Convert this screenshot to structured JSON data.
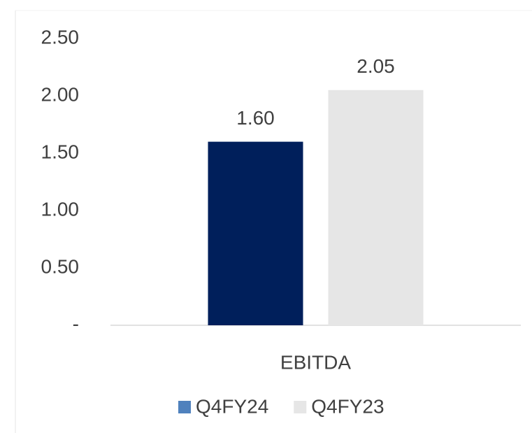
{
  "chart_data": {
    "type": "bar",
    "categories": [
      "EBITDA"
    ],
    "series": [
      {
        "name": "Q4FY24",
        "color": "#001f5b",
        "legend_color": "#4f81bd",
        "values": [
          1.6
        ],
        "value_labels": [
          "1.60"
        ]
      },
      {
        "name": "Q4FY23",
        "color": "#e6e6e6",
        "legend_color": "#e6e6e6",
        "values": [
          2.05
        ],
        "value_labels": [
          "2.05"
        ]
      }
    ],
    "ylim": [
      0,
      2.5
    ],
    "yticks": [
      {
        "value": 0,
        "label": "-"
      },
      {
        "value": 0.5,
        "label": "0.50"
      },
      {
        "value": 1,
        "label": "1.00"
      },
      {
        "value": 1.5,
        "label": "1.50"
      },
      {
        "value": 2,
        "label": "2.00"
      },
      {
        "value": 2.5,
        "label": "2.50"
      }
    ],
    "grid": false,
    "legend": "bottom"
  }
}
